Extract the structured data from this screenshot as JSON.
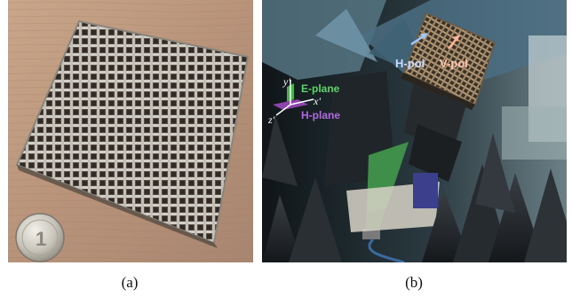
{
  "figure": {
    "panels": [
      {
        "caption": "(a)"
      },
      {
        "caption": "(b)"
      }
    ],
    "annotations": {
      "h_pol": "H-pol",
      "v_pol": "V-pol",
      "e_plane": "E-plane",
      "h_plane": "H-plane",
      "axis_y": "y'",
      "axis_x": "x'",
      "axis_z": "z'"
    },
    "colors": {
      "e_plane": "#4caf50",
      "h_plane": "#8e44ad",
      "h_pol_arrow": "#9ec8ff",
      "v_pol_arrow": "#ffb499"
    },
    "coin_label": "1"
  }
}
